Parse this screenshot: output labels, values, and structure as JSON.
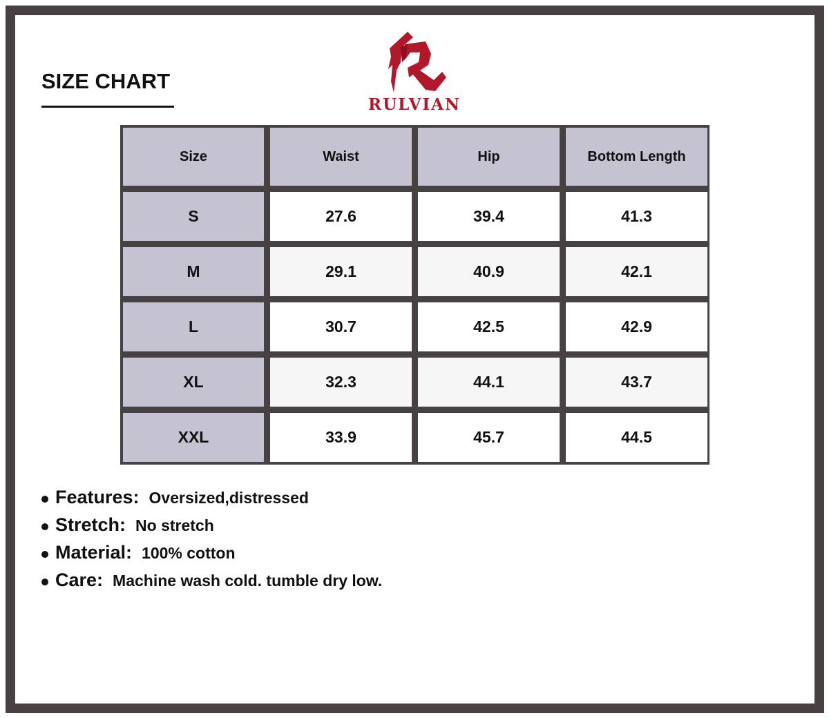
{
  "title": "SIZE CHART",
  "brand": {
    "name": "RULVIAN",
    "color": "#b3172a"
  },
  "table": {
    "headers": [
      "Size",
      "Waist",
      "Hip",
      "Bottom Length"
    ],
    "rows": [
      [
        "S",
        "27.6",
        "39.4",
        "41.3"
      ],
      [
        "M",
        "29.1",
        "40.9",
        "42.1"
      ],
      [
        "L",
        "30.7",
        "42.5",
        "42.9"
      ],
      [
        "XL",
        "32.3",
        "44.1",
        "43.7"
      ],
      [
        "XXL",
        "33.9",
        "45.7",
        "44.5"
      ]
    ]
  },
  "notes": [
    {
      "label": "Features:",
      "value": "Oversized,distressed"
    },
    {
      "label": "Stretch:",
      "value": "No stretch"
    },
    {
      "label": "Material:",
      "value": "100% cotton"
    },
    {
      "label": "Care:",
      "value": "Machine wash cold. tumble dry low."
    }
  ]
}
